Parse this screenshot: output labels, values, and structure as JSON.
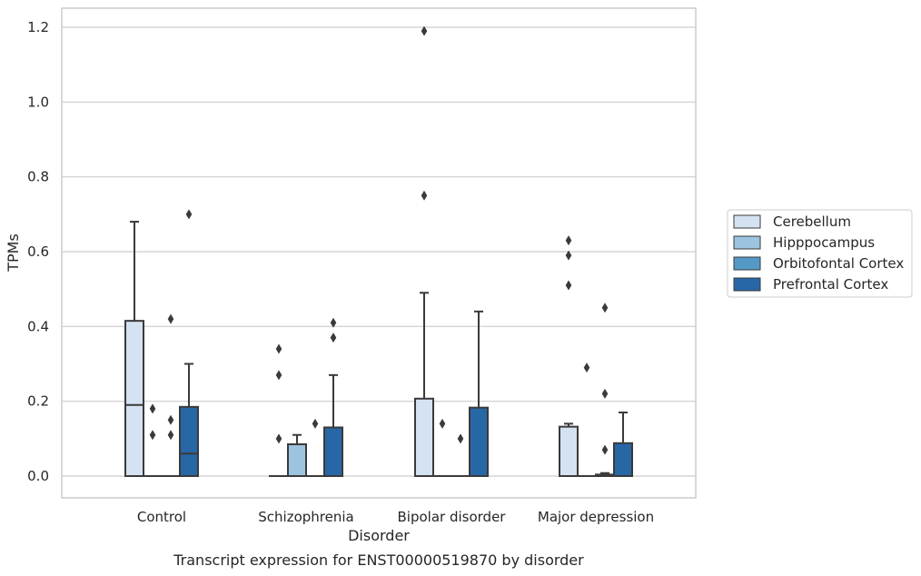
{
  "chart_data": {
    "type": "box",
    "title": "",
    "caption": "Transcript expression for ENST00000519870 by disorder",
    "xlabel": "Disorder",
    "ylabel": "TPMs",
    "ylim": [
      -0.058,
      1.25
    ],
    "yticks": [
      0.0,
      0.2,
      0.4,
      0.6,
      0.8,
      1.0,
      1.2
    ],
    "ytick_labels": [
      "0.0",
      "0.2",
      "0.4",
      "0.6",
      "0.8",
      "1.0",
      "1.2"
    ],
    "grid": "horizontal",
    "legend_position": "right",
    "categories": [
      "Control",
      "Schizophrenia",
      "Bipolar disorder",
      "Major depression"
    ],
    "series": [
      {
        "name": "Cerebellum",
        "color": "#d4e2f1",
        "boxes": [
          {
            "q1": 0.0,
            "median": 0.19,
            "q3": 0.415,
            "whisker_low": 0.0,
            "whisker_high": 0.68,
            "outliers": []
          },
          {
            "q1": 0.0,
            "median": 0.0,
            "q3": 0.0,
            "whisker_low": 0.0,
            "whisker_high": 0.0,
            "outliers": [
              0.1,
              0.27,
              0.34
            ]
          },
          {
            "q1": 0.0,
            "median": 0.0,
            "q3": 0.207,
            "whisker_low": 0.0,
            "whisker_high": 0.49,
            "outliers": [
              0.75,
              1.19
            ]
          },
          {
            "q1": 0.0,
            "median": 0.0,
            "q3": 0.132,
            "whisker_low": 0.0,
            "whisker_high": 0.14,
            "outliers": [
              0.51,
              0.59,
              0.63
            ]
          }
        ]
      },
      {
        "name": "Hipppocampus",
        "color": "#9cc4e0",
        "boxes": [
          {
            "q1": 0.0,
            "median": 0.0,
            "q3": 0.0,
            "whisker_low": 0.0,
            "whisker_high": 0.0,
            "outliers": [
              0.11,
              0.18
            ]
          },
          {
            "q1": 0.0,
            "median": 0.0,
            "q3": 0.085,
            "whisker_low": 0.0,
            "whisker_high": 0.11,
            "outliers": []
          },
          {
            "q1": 0.0,
            "median": 0.0,
            "q3": 0.0,
            "whisker_low": 0.0,
            "whisker_high": 0.0,
            "outliers": [
              0.14
            ]
          },
          {
            "q1": 0.0,
            "median": 0.0,
            "q3": 0.0,
            "whisker_low": 0.0,
            "whisker_high": 0.0,
            "outliers": [
              0.29
            ]
          }
        ]
      },
      {
        "name": "Orbitofontal Cortex",
        "color": "#5499c6",
        "boxes": [
          {
            "q1": 0.0,
            "median": 0.0,
            "q3": 0.0,
            "whisker_low": 0.0,
            "whisker_high": 0.0,
            "outliers": [
              0.11,
              0.15,
              0.42
            ]
          },
          {
            "q1": 0.0,
            "median": 0.0,
            "q3": 0.0,
            "whisker_low": 0.0,
            "whisker_high": 0.0,
            "outliers": [
              0.14
            ]
          },
          {
            "q1": 0.0,
            "median": 0.0,
            "q3": 0.0,
            "whisker_low": 0.0,
            "whisker_high": 0.0,
            "outliers": [
              0.1
            ]
          },
          {
            "q1": 0.0,
            "median": 0.0,
            "q3": 0.004,
            "whisker_low": 0.0,
            "whisker_high": 0.008,
            "outliers": [
              0.07,
              0.22,
              0.45
            ]
          }
        ]
      },
      {
        "name": "Prefrontal Cortex",
        "color": "#2867a6",
        "boxes": [
          {
            "q1": 0.0,
            "median": 0.06,
            "q3": 0.185,
            "whisker_low": 0.0,
            "whisker_high": 0.3,
            "outliers": [
              0.7
            ]
          },
          {
            "q1": 0.0,
            "median": 0.0,
            "q3": 0.13,
            "whisker_low": 0.0,
            "whisker_high": 0.27,
            "outliers": [
              0.37,
              0.41
            ]
          },
          {
            "q1": 0.0,
            "median": 0.0,
            "q3": 0.183,
            "whisker_low": 0.0,
            "whisker_high": 0.44,
            "outliers": []
          },
          {
            "q1": 0.0,
            "median": 0.0,
            "q3": 0.088,
            "whisker_low": 0.0,
            "whisker_high": 0.17,
            "outliers": []
          }
        ]
      }
    ]
  }
}
